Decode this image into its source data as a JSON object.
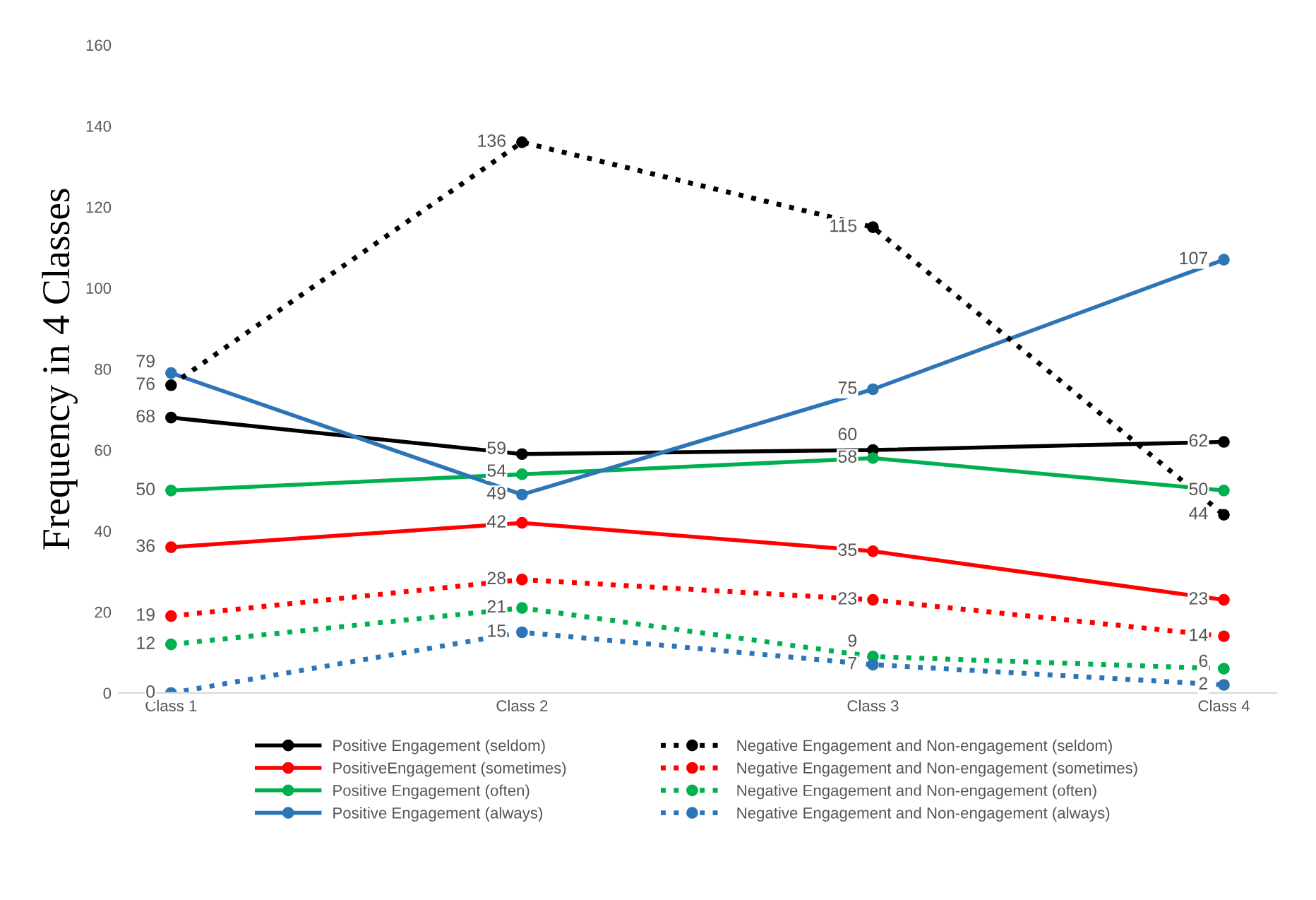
{
  "chart_data": {
    "type": "line",
    "ylabel": "Frequency in 4 Classes",
    "categories": [
      "Class 1",
      "Class 2",
      "Class 3",
      "Class 4"
    ],
    "ylim": [
      0,
      160
    ],
    "yticks": [
      0,
      20,
      40,
      60,
      80,
      100,
      120,
      140,
      160
    ],
    "grid": false,
    "legend": "bottom",
    "marker": "circle",
    "data_labels": true,
    "series": [
      {
        "name": "Positive Engagement (seldom)",
        "color": "#000000",
        "line_style": "solid",
        "values": [
          68,
          59,
          60,
          62
        ]
      },
      {
        "name": "PositiveEngagement (sometimes)",
        "color": "#ff0000",
        "line_style": "solid",
        "values": [
          36,
          42,
          35,
          23
        ]
      },
      {
        "name": "Positive Engagement (often)",
        "color": "#00b050",
        "line_style": "solid",
        "values": [
          50,
          54,
          58,
          50
        ]
      },
      {
        "name": "Positive Engagement (always)",
        "color": "#2e75b6",
        "line_style": "solid",
        "values": [
          79,
          49,
          75,
          107
        ]
      },
      {
        "name": "Negative Engagement and Non-engagement (seldom)",
        "color": "#000000",
        "line_style": "dotted",
        "values": [
          76,
          136,
          115,
          44
        ]
      },
      {
        "name": "Negative Engagement and Non-engagement (sometimes)",
        "color": "#ff0000",
        "line_style": "dotted",
        "values": [
          19,
          28,
          23,
          14
        ]
      },
      {
        "name": "Negative Engagement and Non-engagement (often)",
        "color": "#00b050",
        "line_style": "dotted",
        "values": [
          12,
          21,
          9,
          6
        ]
      },
      {
        "name": "Negative Engagement and Non-engagement (always)",
        "color": "#2e75b6",
        "line_style": "dotted",
        "values": [
          0,
          15,
          7,
          2
        ]
      }
    ]
  }
}
